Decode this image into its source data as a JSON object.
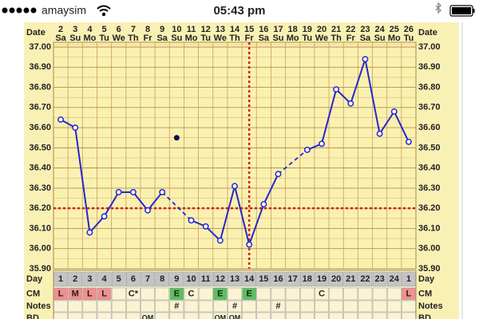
{
  "status_bar": {
    "carrier": "amaysim",
    "time": "05:43 pm"
  },
  "chart_data": {
    "type": "line",
    "date_label": "Date",
    "categories": [
      "2",
      "3",
      "4",
      "5",
      "6",
      "7",
      "8",
      "9",
      "10",
      "11",
      "12",
      "13",
      "14",
      "15",
      "16",
      "17",
      "18",
      "19",
      "20",
      "21",
      "22",
      "23",
      "24",
      "25",
      "26"
    ],
    "weekdays": [
      "Sa",
      "Su",
      "Mo",
      "Tu",
      "We",
      "Th",
      "Fr",
      "Sa",
      "Su",
      "Mo",
      "Tu",
      "We",
      "Th",
      "Fr",
      "Sa",
      "Su",
      "Mo",
      "Tu",
      "We",
      "Th",
      "Fr",
      "Sa",
      "Su",
      "Mo",
      "Tu"
    ],
    "series": [
      {
        "color": "#2626d0",
        "values": [
          36.64,
          36.6,
          36.08,
          36.16,
          36.28,
          36.28,
          36.19,
          36.28,
          null,
          36.14,
          36.11,
          36.04,
          36.31,
          36.02,
          36.22,
          36.37,
          null,
          36.49,
          36.52,
          36.79,
          36.72,
          36.94,
          36.57,
          36.68,
          36.53
        ]
      }
    ],
    "discarded": {
      "index": 8,
      "value": 36.55,
      "color": "#101040"
    },
    "coverline": 36.2,
    "ovulation_index": 13,
    "reference_color": "#d02020",
    "ylim": [
      35.9,
      37.0
    ],
    "yticks": [
      {
        "value": 35.9,
        "label": "35.90"
      },
      {
        "value": 36.0,
        "label": "36.00"
      },
      {
        "value": 36.1,
        "label": "36.10"
      },
      {
        "value": 36.2,
        "label": "36.20"
      },
      {
        "value": 36.3,
        "label": "36.30"
      },
      {
        "value": 36.4,
        "label": "36.40"
      },
      {
        "value": 36.5,
        "label": "36.50"
      },
      {
        "value": 36.6,
        "label": "36.60"
      },
      {
        "value": 36.7,
        "label": "36.70"
      },
      {
        "value": 36.8,
        "label": "36.80"
      },
      {
        "value": 36.9,
        "label": "36.90"
      },
      {
        "value": 37.0,
        "label": "37.00"
      }
    ],
    "grid": true,
    "rows": [
      {
        "label": "Day",
        "values": [
          "1",
          "2",
          "3",
          "4",
          "5",
          "6",
          "7",
          "8",
          "9",
          "10",
          "11",
          "12",
          "13",
          "14",
          "15",
          "16",
          "17",
          "18",
          "19",
          "20",
          "21",
          "22",
          "23",
          "24",
          "1"
        ]
      },
      {
        "label": "CM",
        "values": [
          "L",
          "M",
          "L",
          "L",
          null,
          "C*",
          null,
          null,
          "E",
          "C",
          null,
          "E",
          null,
          "E",
          null,
          null,
          null,
          null,
          "C",
          null,
          null,
          null,
          null,
          null,
          "L"
        ]
      },
      {
        "label": "Notes",
        "values": [
          null,
          null,
          null,
          null,
          null,
          null,
          null,
          null,
          "#",
          null,
          null,
          null,
          "#",
          null,
          null,
          "#",
          null,
          null,
          null,
          null,
          null,
          null,
          null,
          null,
          null
        ]
      },
      {
        "label": "BD",
        "values": [
          null,
          null,
          null,
          null,
          null,
          null,
          "OM",
          null,
          null,
          null,
          null,
          "OM",
          "OM",
          null,
          null,
          null,
          null,
          null,
          null,
          null,
          null,
          null,
          null,
          null,
          null
        ]
      }
    ],
    "cm_colors": {
      "L": "#f09090",
      "M": "#f09090",
      "E": "#5cc060"
    }
  }
}
